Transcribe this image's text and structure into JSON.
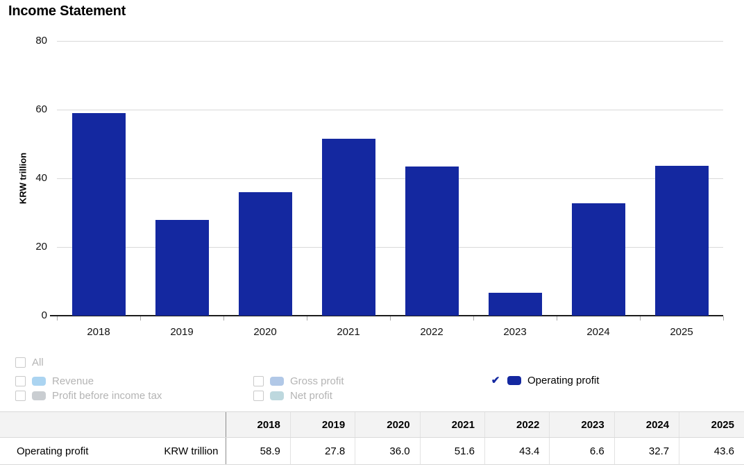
{
  "title": "Income Statement",
  "chart_data": {
    "type": "bar",
    "title": "Income Statement",
    "xlabel": "",
    "ylabel": "KRW trillion",
    "categories": [
      "2018",
      "2019",
      "2020",
      "2021",
      "2022",
      "2023",
      "2024",
      "2025"
    ],
    "series": [
      {
        "name": "Operating profit",
        "values": [
          58.9,
          27.8,
          36.0,
          51.6,
          43.4,
          6.6,
          32.7,
          43.6
        ]
      }
    ],
    "ylim": [
      0,
      80
    ],
    "yticks": [
      0,
      20,
      40,
      60,
      80
    ],
    "grid": true,
    "color": "#1428a0",
    "legend_position": "bottom"
  },
  "legend": {
    "items": [
      {
        "label": "All",
        "checked": false
      },
      {
        "label": "Revenue",
        "checked": false,
        "swatch": "#abd4f1"
      },
      {
        "label": "Profit before income tax",
        "checked": false,
        "swatch": "#c9cdd1"
      },
      {
        "label": "Gross profit",
        "checked": false,
        "swatch": "#b1c8e7"
      },
      {
        "label": "Net profit",
        "checked": false,
        "swatch": "#bdd8de"
      },
      {
        "label": "Operating profit",
        "checked": true,
        "swatch": "#1428a0"
      }
    ],
    "check_icon": "✔"
  },
  "table": {
    "row_label": "Operating profit",
    "unit": "KRW trillion",
    "years": [
      "2018",
      "2019",
      "2020",
      "2021",
      "2022",
      "2023",
      "2024",
      "2025"
    ],
    "values": [
      "58.9",
      "27.8",
      "36.0",
      "51.6",
      "43.4",
      "6.6",
      "32.7",
      "43.6"
    ]
  }
}
